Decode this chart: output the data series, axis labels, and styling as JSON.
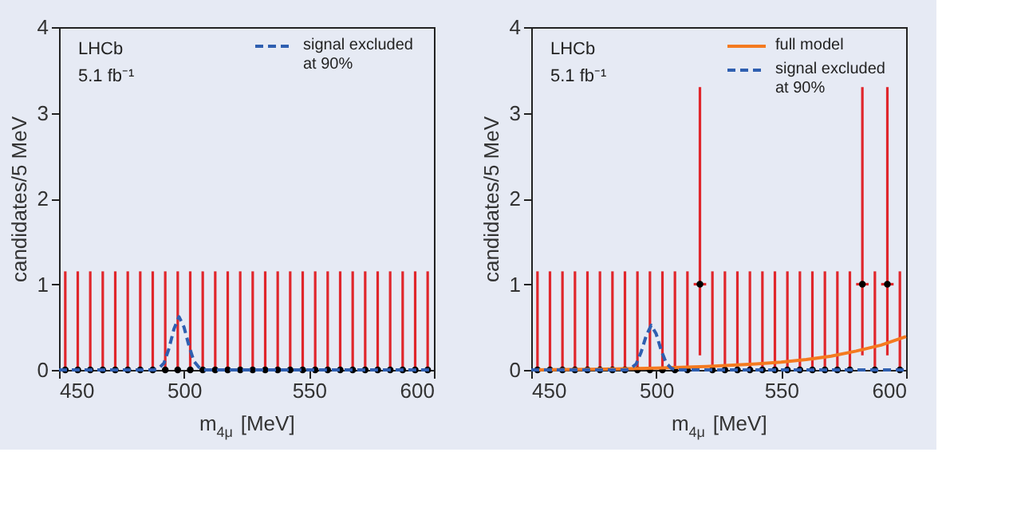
{
  "chart_data": [
    {
      "type": "scatter",
      "xlabel": "m$_{4μ}$ [MeV]",
      "ylabel": "candidates/5 MeV",
      "annotations": [
        "LHCb",
        "5.1 fb⁻¹"
      ],
      "xlim": [
        450,
        600
      ],
      "xticks": [
        450,
        500,
        550,
        600
      ],
      "ylim": [
        0,
        4
      ],
      "yticks": [
        0,
        1,
        2,
        3,
        4
      ],
      "grid": false,
      "legend": "top right",
      "series": [
        {
          "color": "#000000",
          "marker": "circle",
          "x": [
            452.5,
            457.5,
            462.5,
            467.5,
            472.5,
            477.5,
            482.5,
            487.5,
            492.5,
            497.5,
            502.5,
            507.5,
            512.5,
            517.5,
            522.5,
            527.5,
            532.5,
            537.5,
            542.5,
            547.5,
            552.5,
            557.5,
            562.5,
            567.5,
            572.5,
            577.5,
            582.5,
            587.5,
            592.5,
            597.5
          ],
          "values": [
            0,
            0,
            0,
            0,
            0,
            0,
            0,
            0,
            0,
            0,
            0,
            0,
            0,
            0,
            0,
            0,
            0,
            0,
            0,
            0,
            0,
            0,
            0,
            0,
            0,
            0,
            0,
            0,
            0,
            0
          ],
          "errors": [
            [
              0,
              1.15
            ],
            [
              0,
              1.15
            ],
            [
              0,
              1.15
            ],
            [
              0,
              1.15
            ],
            [
              0,
              1.15
            ],
            [
              0,
              1.15
            ],
            [
              0,
              1.15
            ],
            [
              0,
              1.15
            ],
            [
              0,
              1.15
            ],
            [
              0,
              1.15
            ],
            [
              0,
              1.15
            ],
            [
              0,
              1.15
            ],
            [
              0,
              1.15
            ],
            [
              0,
              1.15
            ],
            [
              0,
              1.15
            ],
            [
              0,
              1.15
            ],
            [
              0,
              1.15
            ],
            [
              0,
              1.15
            ],
            [
              0,
              1.15
            ],
            [
              0,
              1.15
            ],
            [
              0,
              1.15
            ],
            [
              0,
              1.15
            ],
            [
              0,
              1.15
            ],
            [
              0,
              1.15
            ],
            [
              0,
              1.15
            ],
            [
              0,
              1.15
            ],
            [
              0,
              1.15
            ],
            [
              0,
              1.15
            ],
            [
              0,
              1.15
            ],
            [
              0,
              1.15
            ]
          ]
        },
        {
          "type": "line",
          "name": "signal excluded\nat 90%",
          "color": "#2f5fb0",
          "line_style": "dashed",
          "x": [
            450,
            488,
            490,
            492,
            494,
            496,
            498,
            500,
            502,
            504,
            506,
            508,
            600
          ],
          "values": [
            0,
            0,
            0.02,
            0.08,
            0.25,
            0.48,
            0.62,
            0.5,
            0.28,
            0.1,
            0.03,
            0,
            0
          ]
        }
      ]
    },
    {
      "type": "scatter",
      "xlabel": "m$_{4μ}$ [MeV]",
      "ylabel": "candidates/5 MeV",
      "annotations": [
        "LHCb",
        "5.1 fb⁻¹"
      ],
      "xlim": [
        450,
        600
      ],
      "xticks": [
        450,
        500,
        550,
        600
      ],
      "ylim": [
        0,
        4
      ],
      "yticks": [
        0,
        1,
        2,
        3,
        4
      ],
      "grid": false,
      "legend": "top right",
      "series": [
        {
          "color": "#000000",
          "marker": "circle",
          "x": [
            452.5,
            457.5,
            462.5,
            467.5,
            472.5,
            477.5,
            482.5,
            487.5,
            492.5,
            497.5,
            502.5,
            507.5,
            512.5,
            517.5,
            522.5,
            527.5,
            532.5,
            537.5,
            542.5,
            547.5,
            552.5,
            557.5,
            562.5,
            567.5,
            572.5,
            577.5,
            582.5,
            587.5,
            592.5,
            597.5
          ],
          "values": [
            0,
            0,
            0,
            0,
            0,
            0,
            0,
            0,
            0,
            0,
            0,
            0,
            0,
            1,
            0,
            0,
            0,
            0,
            0,
            0,
            0,
            0,
            0,
            0,
            0,
            0,
            1,
            0,
            1,
            0
          ],
          "errors": [
            [
              0,
              1.15
            ],
            [
              0,
              1.15
            ],
            [
              0,
              1.15
            ],
            [
              0,
              1.15
            ],
            [
              0,
              1.15
            ],
            [
              0,
              1.15
            ],
            [
              0,
              1.15
            ],
            [
              0,
              1.15
            ],
            [
              0,
              1.15
            ],
            [
              0,
              1.15
            ],
            [
              0,
              1.15
            ],
            [
              0,
              1.15
            ],
            [
              0,
              1.15
            ],
            [
              0.17,
              3.3
            ],
            [
              0,
              1.15
            ],
            [
              0,
              1.15
            ],
            [
              0,
              1.15
            ],
            [
              0,
              1.15
            ],
            [
              0,
              1.15
            ],
            [
              0,
              1.15
            ],
            [
              0,
              1.15
            ],
            [
              0,
              1.15
            ],
            [
              0,
              1.15
            ],
            [
              0,
              1.15
            ],
            [
              0,
              1.15
            ],
            [
              0,
              1.15
            ],
            [
              0.17,
              3.3
            ],
            [
              0,
              1.15
            ],
            [
              0.17,
              3.3
            ],
            [
              0,
              1.15
            ]
          ],
          "xerrors": [
            null,
            null,
            null,
            null,
            null,
            null,
            null,
            null,
            null,
            null,
            null,
            null,
            null,
            2.5,
            null,
            null,
            null,
            null,
            null,
            null,
            null,
            null,
            null,
            null,
            null,
            null,
            2.5,
            null,
            2.5,
            null
          ]
        },
        {
          "type": "line",
          "name": "full model",
          "color": "#f47a20",
          "line_style": "solid",
          "x": [
            450,
            480,
            500,
            520,
            540,
            550,
            560,
            570,
            580,
            590,
            600
          ],
          "values": [
            0,
            0.01,
            0.02,
            0.04,
            0.07,
            0.09,
            0.12,
            0.16,
            0.22,
            0.29,
            0.39
          ]
        },
        {
          "type": "line",
          "name": "signal excluded\nat 90%",
          "color": "#2f5fb0",
          "line_style": "dashed",
          "x": [
            450,
            488,
            490,
            492,
            494,
            496,
            498,
            500,
            502,
            504,
            506,
            508,
            600
          ],
          "values": [
            0,
            0,
            0.02,
            0.07,
            0.21,
            0.4,
            0.52,
            0.42,
            0.23,
            0.08,
            0.02,
            0,
            0
          ]
        }
      ]
    }
  ]
}
